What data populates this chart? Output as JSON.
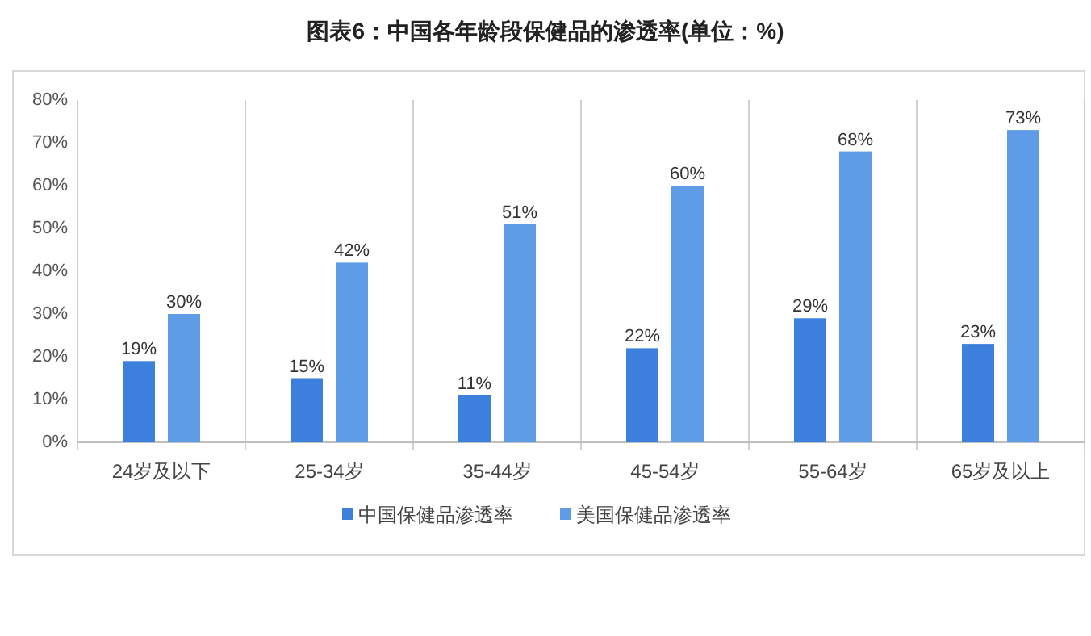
{
  "chart_data": {
    "type": "bar",
    "title": "图表6：中国各年龄段保健品的渗透率(单位：%)",
    "categories": [
      "24岁及以下",
      "25-34岁",
      "35-44岁",
      "45-54岁",
      "55-64岁",
      "65岁及以上"
    ],
    "series": [
      {
        "name": "中国保健品渗透率",
        "color": "#3d7fdc",
        "values": [
          19,
          15,
          11,
          22,
          29,
          23
        ],
        "value_labels": [
          "19%",
          "15%",
          "11%",
          "22%",
          "29%",
          "23%"
        ]
      },
      {
        "name": "美国保健品渗透率",
        "color": "#5e9ce8",
        "values": [
          30,
          42,
          51,
          60,
          68,
          73
        ],
        "value_labels": [
          "30%",
          "42%",
          "51%",
          "60%",
          "68%",
          "73%"
        ]
      }
    ],
    "ylim": [
      0,
      80
    ],
    "yticks": [
      {
        "value": 0,
        "label": "0%"
      },
      {
        "value": 10,
        "label": "10%"
      },
      {
        "value": 20,
        "label": "20%"
      },
      {
        "value": 30,
        "label": "30%"
      },
      {
        "value": 40,
        "label": "40%"
      },
      {
        "value": 50,
        "label": "50%"
      },
      {
        "value": 60,
        "label": "60%"
      },
      {
        "value": 70,
        "label": "70%"
      },
      {
        "value": 80,
        "label": "80%"
      }
    ],
    "legend": "bottom",
    "grid": false
  }
}
